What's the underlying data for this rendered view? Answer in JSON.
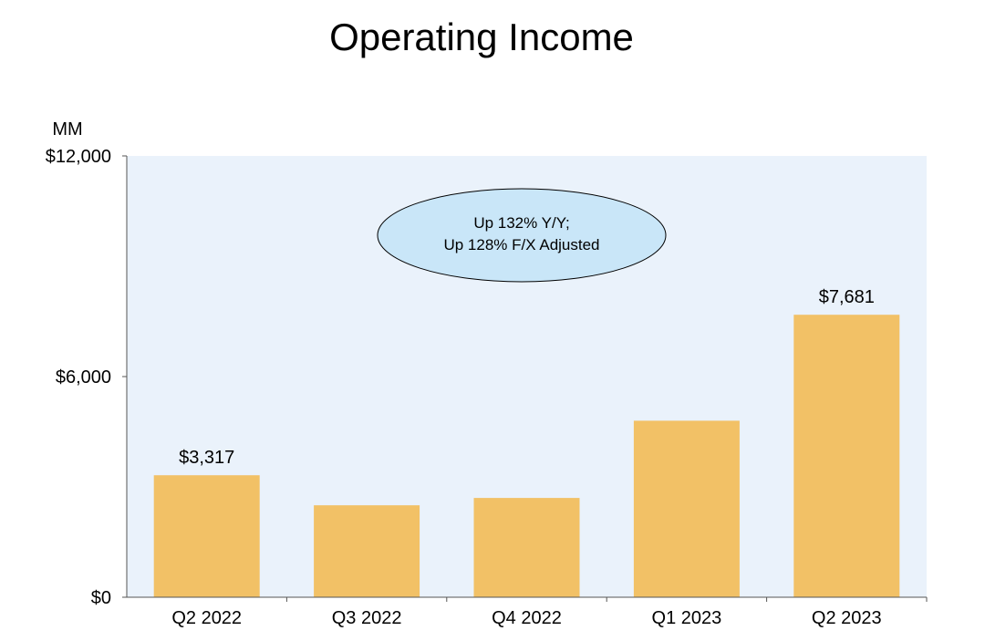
{
  "chart_data": {
    "type": "bar",
    "title": "Operating Income",
    "unit_label": "MM",
    "xlabel": "",
    "ylabel": "",
    "categories": [
      "Q2 2022",
      "Q3 2022",
      "Q4 2022",
      "Q1 2023",
      "Q2 2023"
    ],
    "values": [
      3317,
      2500,
      2700,
      4800,
      7681
    ],
    "data_labels": [
      "$3,317",
      "",
      "",
      "",
      "$7,681"
    ],
    "ylim": [
      0,
      12000
    ],
    "y_ticks": [
      {
        "value": 0,
        "label": "$0"
      },
      {
        "value": 6000,
        "label": "$6,000"
      },
      {
        "value": 12000,
        "label": "$12,000"
      }
    ],
    "grid": false,
    "legend": "none",
    "annotation": {
      "lines": [
        "Up 132% Y/Y;",
        "Up 128% F/X Adjusted"
      ],
      "fill_color": "#c9e6f8"
    },
    "colors": {
      "bar": "#f2c166",
      "plot_background": "#eaf2fb",
      "axis": "#555555"
    }
  }
}
